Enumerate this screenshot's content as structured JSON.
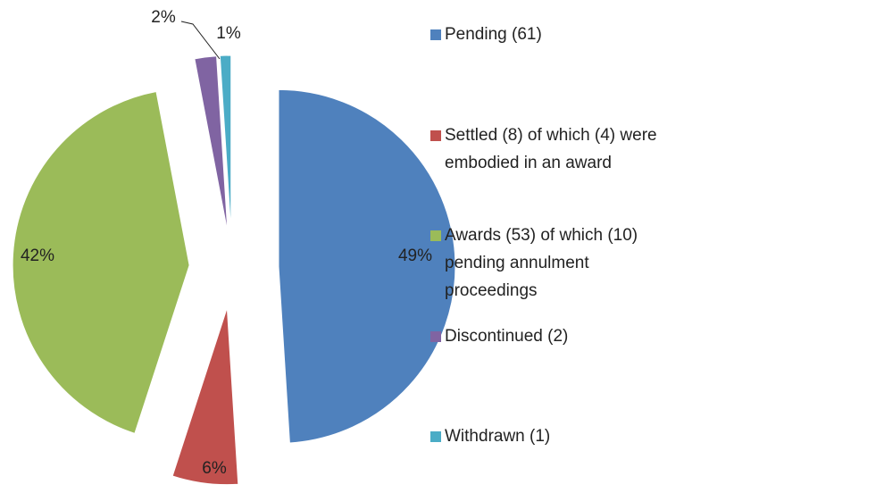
{
  "chart_data": {
    "type": "pie",
    "categories": [
      "Pending (61)",
      "Settled (8) of which (4) were\nembodied in an award",
      "Awards (53) of which (10)\npending annulment\nproceedings",
      "Discontinued (2)",
      "Withdrawn (1)"
    ],
    "values": [
      49,
      6,
      42,
      2,
      1
    ],
    "value_labels": [
      "49%",
      "6%",
      "42%",
      "2%",
      "1%"
    ],
    "colors": [
      "#4f81bd",
      "#c0504d",
      "#9bbb59",
      "#8064a2",
      "#4bacc6"
    ],
    "legend": "right"
  }
}
